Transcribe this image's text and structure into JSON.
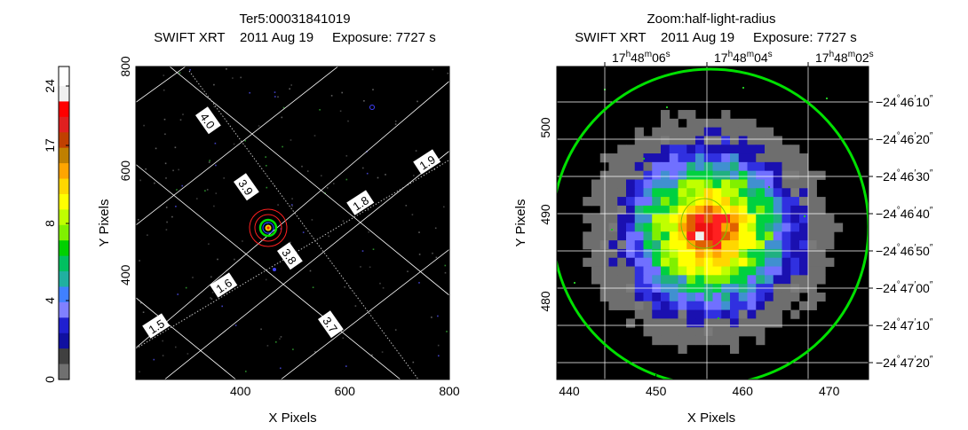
{
  "chart_data": [
    {
      "type": "heatmap",
      "title": "Ter5:00031841019",
      "subtitle": "SWIFT XRT    2011 Aug 19     Exposure: 7727 s",
      "xlabel": "X Pixels",
      "ylabel": "Y Pixels",
      "xlim": [
        200,
        800
      ],
      "ylim": [
        200,
        800
      ],
      "xticks": [
        "400",
        "600",
        "800"
      ],
      "yticks": [
        "400",
        "600",
        "800"
      ],
      "grid_labels": [
        "4.0",
        "3.9",
        "3.8",
        "3.7",
        "1.9",
        "1.8",
        "1.6",
        "1.5"
      ],
      "colorbar": {
        "ticks": [
          "0",
          "4",
          "8",
          "17",
          "24"
        ]
      },
      "colors": {
        "background": "#000000",
        "grid": "#ffffff",
        "circle_green": "#00e000",
        "circle_red": "#ff2020"
      }
    },
    {
      "type": "heatmap",
      "title": "Zoom:half-light-radius",
      "subtitle": "SWIFT XRT    2011 Aug 19     Exposure: 7727 s",
      "xlabel": "X Pixels",
      "ylabel": "Y Pixels",
      "xlim": [
        438.5,
        474.5
      ],
      "ylim": [
        471.5,
        507.5
      ],
      "xticks": [
        "440",
        "450",
        "460",
        "470"
      ],
      "yticks": [
        "480",
        "490",
        "500"
      ],
      "ra_ticks": [
        {
          "h": "17",
          "m": "48",
          "s": "06"
        },
        {
          "h": "17",
          "m": "48",
          "s": "04"
        },
        {
          "h": "17",
          "m": "48",
          "s": "02"
        }
      ],
      "dec_ticks": [
        {
          "d": "−24",
          "m": "46",
          "s": "10"
        },
        {
          "d": "−24",
          "m": "46",
          "s": "20"
        },
        {
          "d": "−24",
          "m": "46",
          "s": "30"
        },
        {
          "d": "−24",
          "m": "46",
          "s": "40"
        },
        {
          "d": "−24",
          "m": "46",
          "s": "50"
        },
        {
          "d": "−24",
          "m": "47",
          "s": "00"
        },
        {
          "d": "−24",
          "m": "47",
          "s": "10"
        },
        {
          "d": "−24",
          "m": "47",
          "s": "20"
        }
      ],
      "colors": {
        "background": "#000000",
        "grid": "#ffffff",
        "circle_green": "#00e000"
      }
    }
  ]
}
